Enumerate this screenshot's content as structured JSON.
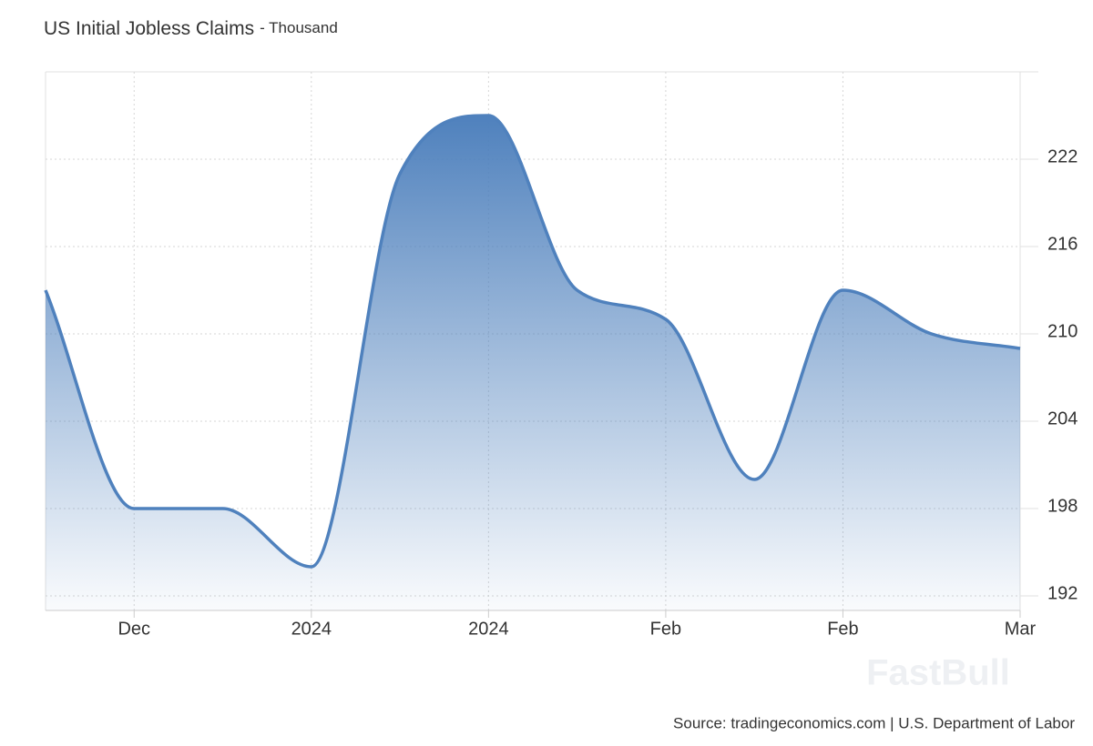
{
  "chart_data": {
    "type": "area",
    "title": "US Initial Jobless Claims",
    "subtitle": "- Thousand",
    "source": "Source: tradingeconomics.com | U.S. Department of Labor",
    "watermark": "FastBull",
    "categories": [
      null,
      "Dec",
      null,
      "2024",
      null,
      "2024",
      null,
      "Feb",
      null,
      "Feb",
      null,
      "Mar"
    ],
    "values": [
      213,
      198,
      198,
      194,
      221,
      225,
      213,
      211,
      200,
      213,
      210,
      209
    ],
    "color": "#4f81bd",
    "ylim": [
      191,
      228
    ],
    "yticks": [
      192,
      198,
      204,
      210,
      216,
      222
    ],
    "grid": true
  }
}
